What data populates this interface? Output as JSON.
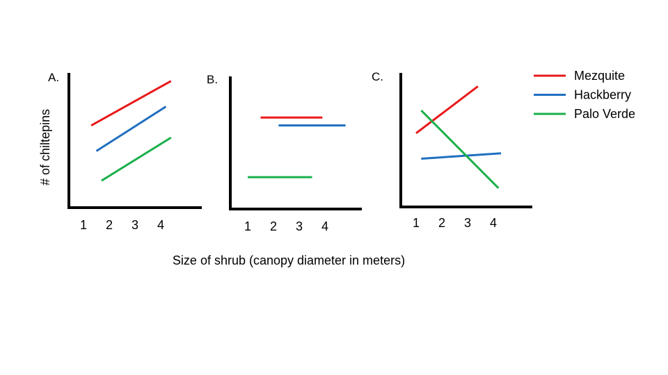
{
  "chart_data": {
    "type": "line",
    "ylabel": "# of chiltepins",
    "xlabel": "Size of shrub (canopy diameter in meters)",
    "x_ticks": [
      "1",
      "2",
      "3",
      "4"
    ],
    "legend": [
      {
        "name": "Mezquite",
        "color": "#e8191a"
      },
      {
        "name": "Hackberry",
        "color": "#1f6fbf"
      },
      {
        "name": "Palo Verde",
        "color": "#1aaf4b"
      }
    ],
    "panels": [
      {
        "label": "A.",
        "xlim": [
          0.5,
          5.0
        ],
        "ylim": [
          0,
          10
        ],
        "series": [
          {
            "name": "Mezquite",
            "x": [
              1.3,
              4.4
            ],
            "y": [
              6.1,
              9.4
            ]
          },
          {
            "name": "Hackberry",
            "x": [
              1.5,
              4.2
            ],
            "y": [
              4.2,
              7.5
            ]
          },
          {
            "name": "Palo Verde",
            "x": [
              1.7,
              4.4
            ],
            "y": [
              2.0,
              5.2
            ]
          }
        ]
      },
      {
        "label": "B.",
        "xlim": [
          0.5,
          5.0
        ],
        "ylim": [
          0,
          10
        ],
        "series": [
          {
            "name": "Mezquite",
            "x": [
              1.5,
              3.9
            ],
            "y": [
              6.9,
              6.9
            ]
          },
          {
            "name": "Hackberry",
            "x": [
              2.2,
              4.8
            ],
            "y": [
              6.3,
              6.3
            ]
          },
          {
            "name": "Palo Verde",
            "x": [
              1.0,
              3.5
            ],
            "y": [
              2.4,
              2.4
            ]
          }
        ]
      },
      {
        "label": "C.",
        "xlim": [
          0.5,
          5.0
        ],
        "ylim": [
          0,
          10
        ],
        "series": [
          {
            "name": "Mezquite",
            "x": [
              1.0,
              3.4
            ],
            "y": [
              5.5,
              9.0
            ]
          },
          {
            "name": "Hackberry",
            "x": [
              1.2,
              4.3
            ],
            "y": [
              3.6,
              4.0
            ]
          },
          {
            "name": "Palo Verde",
            "x": [
              1.2,
              4.2
            ],
            "y": [
              7.2,
              1.4
            ]
          }
        ]
      }
    ]
  }
}
